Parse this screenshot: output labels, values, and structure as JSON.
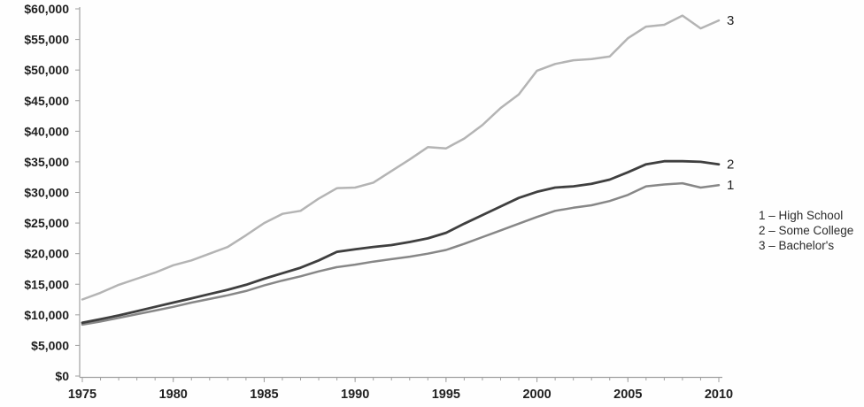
{
  "chart_data": {
    "type": "line",
    "title": "",
    "xlabel": "",
    "ylabel": "",
    "x_start": 1975,
    "x_end": 2010,
    "ylim": [
      0,
      60000
    ],
    "grid": false,
    "legend_position": "right-middle",
    "legend": [
      "1 – High School",
      "2 – Some College",
      "3 – Bachelor's"
    ],
    "y_ticks": [
      {
        "v": 0,
        "label": "$0"
      },
      {
        "v": 5000,
        "label": "$5,000"
      },
      {
        "v": 10000,
        "label": "$10,000"
      },
      {
        "v": 15000,
        "label": "$15,000"
      },
      {
        "v": 20000,
        "label": "$20,000"
      },
      {
        "v": 25000,
        "label": "$25,000"
      },
      {
        "v": 30000,
        "label": "$30,000"
      },
      {
        "v": 35000,
        "label": "$35,000"
      },
      {
        "v": 40000,
        "label": "$40,000"
      },
      {
        "v": 45000,
        "label": "$45,000"
      },
      {
        "v": 50000,
        "label": "$50,000"
      },
      {
        "v": 55000,
        "label": "$55,000"
      },
      {
        "v": 60000,
        "label": "$60,000"
      }
    ],
    "x_ticks_major": [
      {
        "v": 1975,
        "label": "1975"
      },
      {
        "v": 1980,
        "label": "1980"
      },
      {
        "v": 1985,
        "label": "1985"
      },
      {
        "v": 1990,
        "label": "1990"
      },
      {
        "v": 1995,
        "label": "1995"
      },
      {
        "v": 2000,
        "label": "2000"
      },
      {
        "v": 2005,
        "label": "2005"
      },
      {
        "v": 2010,
        "label": "2010"
      }
    ],
    "x_minor_step": 1,
    "x": [
      1975,
      1976,
      1977,
      1978,
      1979,
      1980,
      1981,
      1982,
      1983,
      1984,
      1985,
      1986,
      1987,
      1988,
      1989,
      1990,
      1991,
      1992,
      1993,
      1994,
      1995,
      1996,
      1997,
      1998,
      1999,
      2000,
      2001,
      2002,
      2003,
      2004,
      2005,
      2006,
      2007,
      2008,
      2009,
      2010
    ],
    "series": [
      {
        "name": "High School",
        "marker": "1",
        "color": "#878787",
        "width": 2.5,
        "values": [
          8400,
          8900,
          9500,
          10100,
          10700,
          11300,
          12000,
          12600,
          13200,
          13900,
          14800,
          15600,
          16300,
          17100,
          17800,
          18200,
          18700,
          19100,
          19500,
          20000,
          20600,
          21600,
          22700,
          23800,
          24900,
          26000,
          27000,
          27500,
          27900,
          28600,
          29600,
          31000,
          31300,
          31500,
          30800,
          31200
        ]
      },
      {
        "name": "Some College",
        "marker": "2",
        "color": "#3f3f3f",
        "width": 2.8,
        "values": [
          8700,
          9300,
          9900,
          10600,
          11300,
          12000,
          12700,
          13400,
          14100,
          14900,
          15900,
          16800,
          17700,
          18900,
          20300,
          20700,
          21100,
          21400,
          21900,
          22500,
          23400,
          24900,
          26300,
          27700,
          29100,
          30100,
          30800,
          31000,
          31400,
          32100,
          33300,
          34600,
          35100,
          35100,
          35000,
          34600
        ]
      },
      {
        "name": "Bachelor's",
        "marker": "3",
        "color": "#b4b4b4",
        "width": 2.5,
        "values": [
          12500,
          13600,
          14900,
          15900,
          16900,
          18100,
          18900,
          20000,
          21100,
          23000,
          25000,
          26500,
          27000,
          29000,
          30700,
          30800,
          31600,
          33500,
          35400,
          37400,
          37200,
          38800,
          41000,
          43800,
          46000,
          49900,
          51000,
          51600,
          51800,
          52200,
          55200,
          57100,
          57400,
          58900,
          56800,
          58100
        ]
      }
    ]
  }
}
